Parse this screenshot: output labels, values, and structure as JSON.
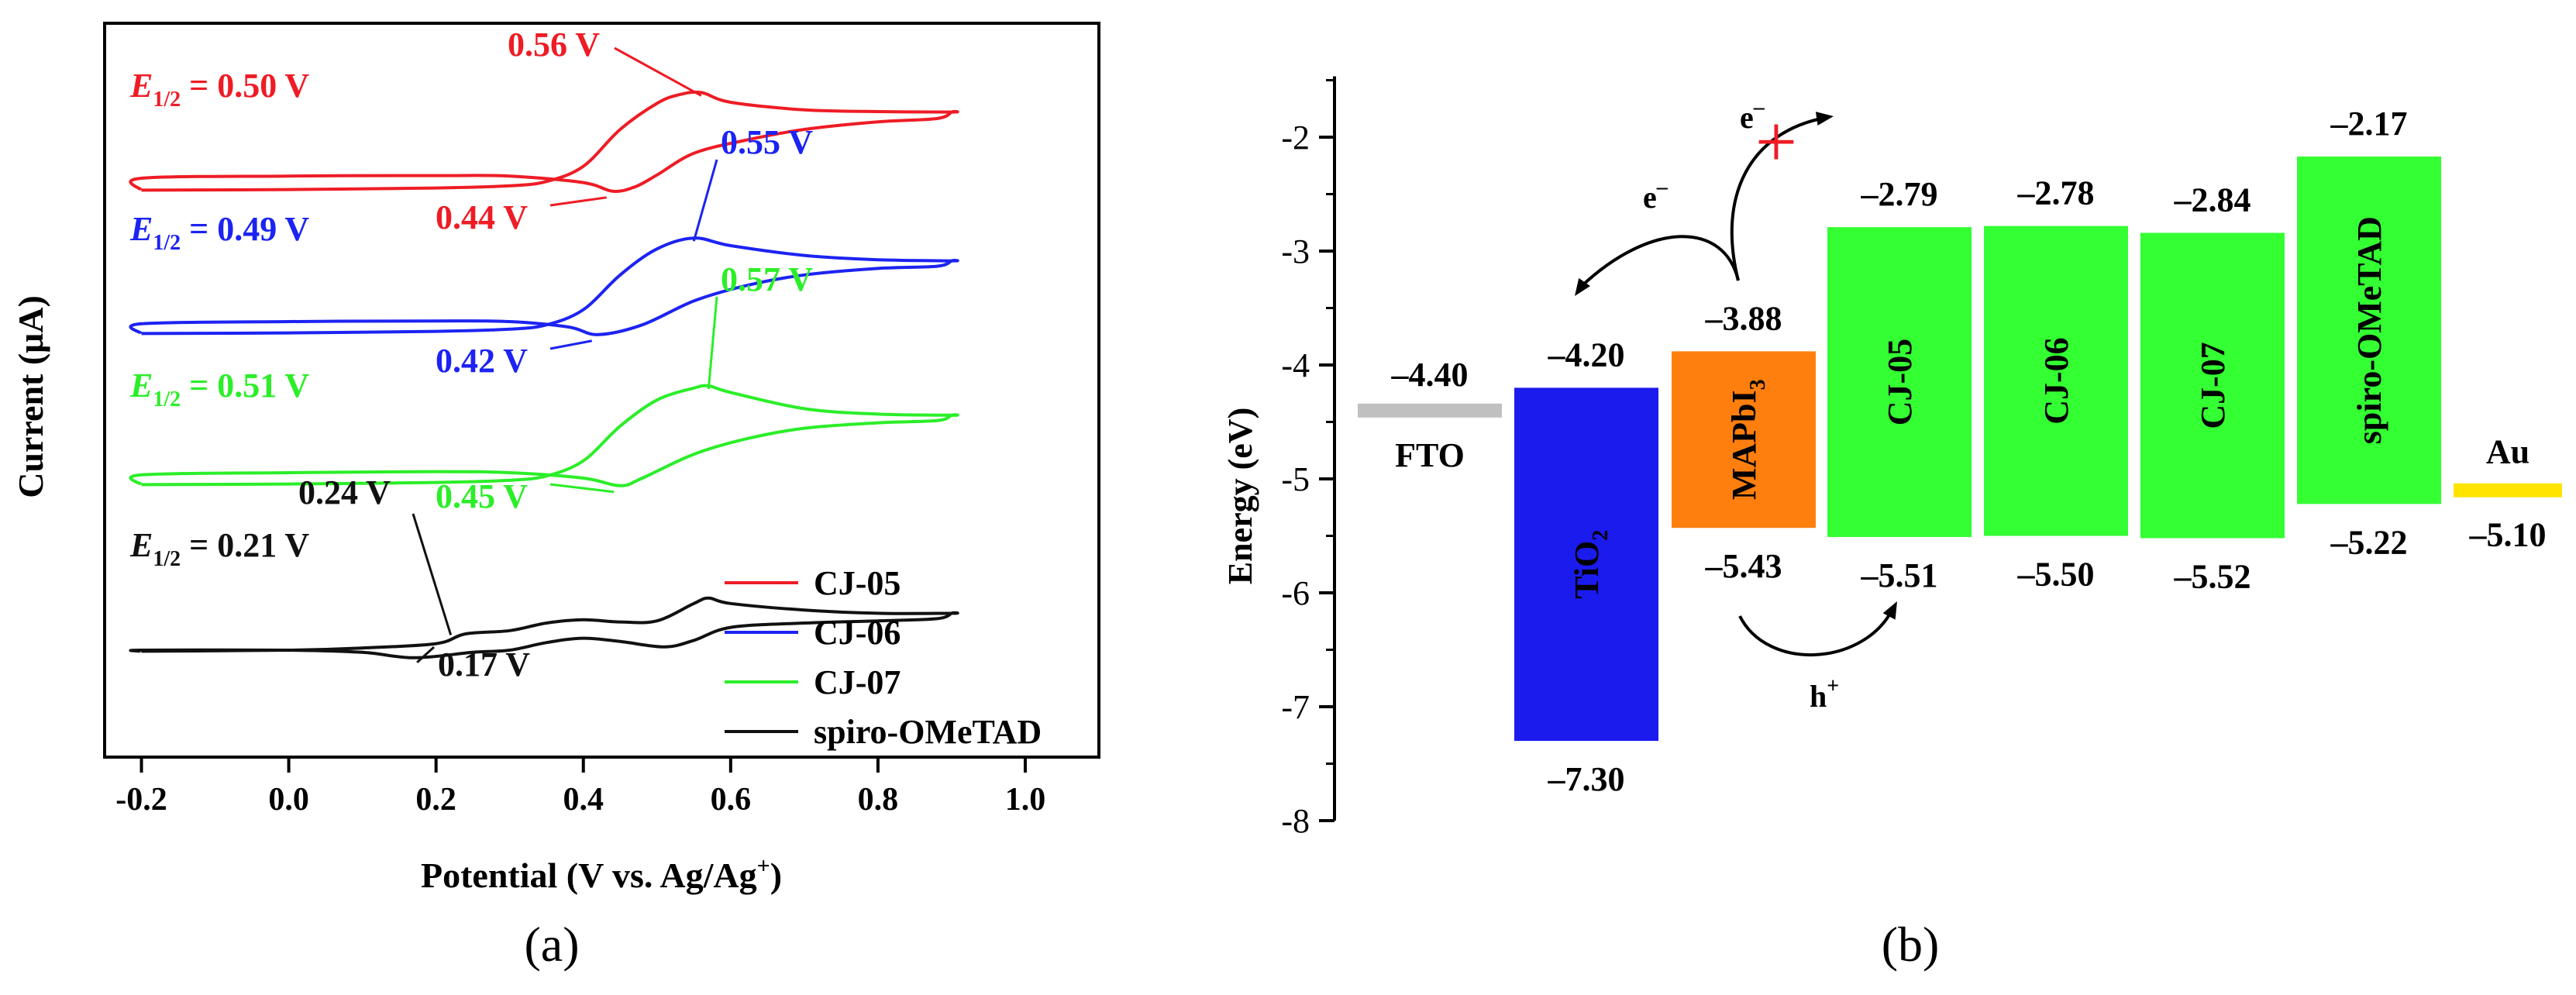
{
  "chart_data": [
    {
      "panel_label": "(a)",
      "type": "line",
      "title": "",
      "xlabel": "Potential (V vs. Ag/Ag+)",
      "ylabel": "Current (μA)",
      "xlim": [
        -0.25,
        1.1
      ],
      "xticks": [
        "-0.2",
        "0.0",
        "0.2",
        "0.4",
        "0.6",
        "0.8",
        "1.0"
      ],
      "xtick_values": [
        -0.2,
        0.0,
        0.2,
        0.4,
        0.6,
        0.8,
        1.0
      ],
      "legend_position": "bottom-right",
      "series": [
        {
          "name": "CJ-05",
          "color": "#ee1c25",
          "e_half": "0.50 V",
          "anodic_peak": "0.56 V",
          "cathodic_peak": "0.44 V",
          "forward": [
            [
              -0.2,
              1.0
            ],
            [
              0.0,
              1.03
            ],
            [
              0.2,
              1.1
            ],
            [
              0.3,
              1.2
            ],
            [
              0.35,
              1.4
            ],
            [
              0.4,
              2.1
            ],
            [
              0.45,
              3.8
            ],
            [
              0.5,
              5.0
            ],
            [
              0.53,
              5.4
            ],
            [
              0.56,
              5.5
            ],
            [
              0.6,
              5.05
            ],
            [
              0.7,
              4.7
            ],
            [
              0.8,
              4.62
            ],
            [
              0.9,
              4.6
            ]
          ],
          "reverse": [
            [
              0.9,
              4.6
            ],
            [
              0.88,
              4.3
            ],
            [
              0.8,
              4.15
            ],
            [
              0.7,
              3.8
            ],
            [
              0.62,
              3.3
            ],
            [
              0.55,
              2.7
            ],
            [
              0.5,
              1.7
            ],
            [
              0.47,
              1.15
            ],
            [
              0.44,
              0.95
            ],
            [
              0.4,
              1.35
            ],
            [
              0.3,
              1.65
            ],
            [
              0.2,
              1.67
            ],
            [
              0.0,
              1.65
            ],
            [
              -0.2,
              1.55
            ],
            [
              -0.2,
              1.0
            ]
          ]
        },
        {
          "name": "CJ-06",
          "color": "#1c23f2",
          "e_half": "0.49 V",
          "anodic_peak": "0.55 V",
          "cathodic_peak": "0.42 V",
          "forward": [
            [
              -0.2,
              1.0
            ],
            [
              0.0,
              1.03
            ],
            [
              0.2,
              1.1
            ],
            [
              0.3,
              1.2
            ],
            [
              0.35,
              1.4
            ],
            [
              0.4,
              2.1
            ],
            [
              0.45,
              3.7
            ],
            [
              0.5,
              4.9
            ],
            [
              0.55,
              5.4
            ],
            [
              0.6,
              5.05
            ],
            [
              0.7,
              4.6
            ],
            [
              0.8,
              4.4
            ],
            [
              0.9,
              4.35
            ]
          ],
          "reverse": [
            [
              0.9,
              4.35
            ],
            [
              0.88,
              4.1
            ],
            [
              0.8,
              4.0
            ],
            [
              0.7,
              3.7
            ],
            [
              0.62,
              3.2
            ],
            [
              0.55,
              2.5
            ],
            [
              0.48,
              1.4
            ],
            [
              0.42,
              0.95
            ],
            [
              0.38,
              1.3
            ],
            [
              0.3,
              1.55
            ],
            [
              0.2,
              1.58
            ],
            [
              0.0,
              1.55
            ],
            [
              -0.2,
              1.45
            ],
            [
              -0.2,
              1.0
            ]
          ]
        },
        {
          "name": "CJ-07",
          "color": "#2bee28",
          "e_half": "0.51 V",
          "anodic_peak": "0.57 V",
          "cathodic_peak": "0.45 V",
          "forward": [
            [
              -0.2,
              1.0
            ],
            [
              0.0,
              1.03
            ],
            [
              0.2,
              1.1
            ],
            [
              0.3,
              1.2
            ],
            [
              0.35,
              1.4
            ],
            [
              0.4,
              2.1
            ],
            [
              0.45,
              3.7
            ],
            [
              0.5,
              4.9
            ],
            [
              0.55,
              5.45
            ],
            [
              0.57,
              5.55
            ],
            [
              0.6,
              5.25
            ],
            [
              0.7,
              4.5
            ],
            [
              0.8,
              4.25
            ],
            [
              0.9,
              4.2
            ]
          ],
          "reverse": [
            [
              0.9,
              4.2
            ],
            [
              0.88,
              3.95
            ],
            [
              0.8,
              3.85
            ],
            [
              0.7,
              3.6
            ],
            [
              0.62,
              3.1
            ],
            [
              0.55,
              2.4
            ],
            [
              0.48,
              1.3
            ],
            [
              0.45,
              0.95
            ],
            [
              0.4,
              1.3
            ],
            [
              0.3,
              1.55
            ],
            [
              0.2,
              1.6
            ],
            [
              0.0,
              1.55
            ],
            [
              -0.2,
              1.45
            ],
            [
              -0.2,
              1.0
            ]
          ]
        },
        {
          "name": "spiro-OMeTAD",
          "color": "#111111",
          "e_half": "0.21 V",
          "anodic_peak": "0.24 V",
          "cathodic_peak": "0.17 V",
          "forward": [
            [
              -0.2,
              1.0
            ],
            [
              0.0,
              1.05
            ],
            [
              0.1,
              1.15
            ],
            [
              0.2,
              1.35
            ],
            [
              0.24,
              1.8
            ],
            [
              0.3,
              1.95
            ],
            [
              0.35,
              2.3
            ],
            [
              0.4,
              2.45
            ],
            [
              0.45,
              2.35
            ],
            [
              0.5,
              2.4
            ],
            [
              0.55,
              3.2
            ],
            [
              0.57,
              3.45
            ],
            [
              0.6,
              3.2
            ],
            [
              0.7,
              2.9
            ],
            [
              0.8,
              2.75
            ],
            [
              0.9,
              2.75
            ]
          ],
          "reverse": [
            [
              0.9,
              2.75
            ],
            [
              0.88,
              2.5
            ],
            [
              0.8,
              2.4
            ],
            [
              0.7,
              2.3
            ],
            [
              0.6,
              2.1
            ],
            [
              0.55,
              1.5
            ],
            [
              0.51,
              1.2
            ],
            [
              0.45,
              1.45
            ],
            [
              0.4,
              1.6
            ],
            [
              0.35,
              1.4
            ],
            [
              0.3,
              1.05
            ],
            [
              0.25,
              0.95
            ],
            [
              0.17,
              0.7
            ],
            [
              0.1,
              0.95
            ],
            [
              0.0,
              1.05
            ],
            [
              -0.2,
              1.05
            ],
            [
              -0.2,
              1.0
            ]
          ]
        }
      ]
    },
    {
      "panel_label": "(b)",
      "type": "bar",
      "subtype": "energy-level diagram (floating bars)",
      "ylabel": "Energy (eV)",
      "ylim": [
        -8,
        -1.5
      ],
      "yticks": [
        "-2",
        "-3",
        "-4",
        "-5",
        "-6",
        "-7",
        "-8"
      ],
      "ytick_values": [
        -2,
        -3,
        -4,
        -5,
        -6,
        -7,
        -8
      ],
      "levels": [
        {
          "name": "FTO",
          "kind": "line",
          "value": -4.4,
          "value_label": "–4.40",
          "color": "#c0c0c0"
        },
        {
          "name": "TiO2",
          "label": "TiO",
          "label_sub": "2",
          "kind": "bar",
          "top": -4.2,
          "bottom": -7.3,
          "top_label": "–4.20",
          "bottom_label": "–7.30",
          "color": "#1b1bee"
        },
        {
          "name": "MAPbI3",
          "label": "MAPbI",
          "label_sub": "3",
          "kind": "bar",
          "top": -3.88,
          "bottom": -5.43,
          "top_label": "–3.88",
          "bottom_label": "–5.43",
          "color": "#ff7f0e"
        },
        {
          "name": "CJ-05",
          "label": "CJ-05",
          "kind": "bar",
          "top": -2.79,
          "bottom": -5.51,
          "top_label": "–2.79",
          "bottom_label": "–5.51",
          "color": "#33ff33"
        },
        {
          "name": "CJ-06",
          "label": "CJ-06",
          "kind": "bar",
          "top": -2.78,
          "bottom": -5.5,
          "top_label": "–2.78",
          "bottom_label": "–5.50",
          "color": "#33ff33"
        },
        {
          "name": "CJ-07",
          "label": "CJ-07",
          "kind": "bar",
          "top": -2.84,
          "bottom": -5.52,
          "top_label": "–2.84",
          "bottom_label": "–5.52",
          "color": "#33ff33"
        },
        {
          "name": "spiro-OMeTAD",
          "label": "spiro-OMeTAD",
          "kind": "bar",
          "top": -2.17,
          "bottom": -5.22,
          "top_label": "–2.17",
          "bottom_label": "–5.22",
          "color": "#33ff33"
        },
        {
          "name": "Au",
          "kind": "line",
          "value": -5.1,
          "value_label": "–5.10",
          "color": "#ffe400"
        }
      ],
      "annotations": {
        "electron": "e",
        "electron_sup": "–",
        "hole": "h",
        "hole_sup": "+",
        "blocked_mark": "+",
        "blocked_color": "#ee1c25"
      }
    }
  ]
}
